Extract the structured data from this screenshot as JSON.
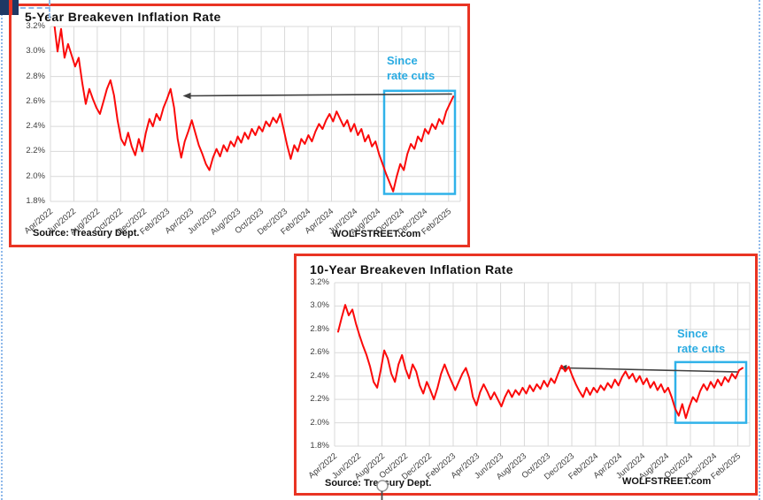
{
  "chart_data": [
    {
      "type": "line",
      "title": "5-Year Breakeven Inflation Rate",
      "source_label": "Source: Treasury Dept.",
      "brand_label": "WOLFSTREET.com",
      "annotation": {
        "line1": "Since",
        "line2": "rate cuts",
        "color": "#29abe2"
      },
      "line_color": "#fb0a0a",
      "border_color": "#e93423",
      "grid_color": "#d9d9d9",
      "axis_text_color": "#404040",
      "arrow_color": "#404040",
      "ylim": [
        1.8,
        3.2
      ],
      "x_total": 35,
      "x_start": 0.3,
      "x_end": 34.4,
      "y_ticks": [
        {
          "value": 3.2,
          "label": "3.2%"
        },
        {
          "value": 3.0,
          "label": "3.0%"
        },
        {
          "value": 2.8,
          "label": "2.8%"
        },
        {
          "value": 2.6,
          "label": "2.6%"
        },
        {
          "value": 2.4,
          "label": "2.4%"
        },
        {
          "value": 2.2,
          "label": "2.2%"
        },
        {
          "value": 2.0,
          "label": "2.0%"
        },
        {
          "value": 1.8,
          "label": "1.8%"
        }
      ],
      "x_tick_labels": [
        "Apr/2022",
        "Jun/2022",
        "Aug/2022",
        "Oct/2022",
        "Dec/2022",
        "Feb/2023",
        "Apr/2023",
        "Jun/2023",
        "Aug/2023",
        "Oct/2023",
        "Dec/2023",
        "Feb/2024",
        "Apr/2024",
        "Jun/2024",
        "Aug/2024",
        "Oct/2024",
        "Dec/2024",
        "Feb/2025"
      ],
      "highlight_box": {
        "x": [
          28.5,
          34.55
        ],
        "y": [
          1.86,
          2.685
        ],
        "color": "#30b2e9"
      },
      "arrow": {
        "from": [
          34.3,
          2.66
        ],
        "to": [
          11.3,
          2.645
        ]
      },
      "values": [
        3.24,
        3.0,
        3.18,
        2.95,
        3.06,
        2.97,
        2.88,
        2.95,
        2.75,
        2.58,
        2.7,
        2.62,
        2.55,
        2.5,
        2.6,
        2.7,
        2.77,
        2.65,
        2.45,
        2.3,
        2.25,
        2.35,
        2.24,
        2.17,
        2.3,
        2.2,
        2.35,
        2.46,
        2.4,
        2.5,
        2.45,
        2.55,
        2.62,
        2.7,
        2.55,
        2.3,
        2.15,
        2.28,
        2.36,
        2.45,
        2.35,
        2.25,
        2.18,
        2.1,
        2.05,
        2.15,
        2.22,
        2.16,
        2.25,
        2.2,
        2.28,
        2.24,
        2.32,
        2.27,
        2.35,
        2.3,
        2.38,
        2.33,
        2.4,
        2.36,
        2.44,
        2.4,
        2.47,
        2.43,
        2.5,
        2.38,
        2.25,
        2.14,
        2.25,
        2.2,
        2.3,
        2.26,
        2.33,
        2.28,
        2.36,
        2.42,
        2.38,
        2.45,
        2.5,
        2.44,
        2.52,
        2.46,
        2.4,
        2.45,
        2.36,
        2.42,
        2.33,
        2.38,
        2.28,
        2.33,
        2.24,
        2.28,
        2.18,
        2.1,
        2.02,
        1.95,
        1.88,
        2.0,
        2.1,
        2.05,
        2.18,
        2.26,
        2.22,
        2.32,
        2.28,
        2.38,
        2.34,
        2.42,
        2.38,
        2.46,
        2.42,
        2.52,
        2.58,
        2.64
      ]
    },
    {
      "type": "line",
      "title": "10-Year Breakeven Inflation Rate",
      "source_label": "Source: Treasury Dept.",
      "brand_label": "WOLFSTREET.com",
      "annotation": {
        "line1": "Since",
        "line2": "rate cuts",
        "color": "#29abe2"
      },
      "line_color": "#fb0a0a",
      "border_color": "#e93423",
      "grid_color": "#d9d9d9",
      "axis_text_color": "#404040",
      "arrow_color": "#404040",
      "ylim": [
        1.8,
        3.2
      ],
      "x_total": 35,
      "x_start": 0.3,
      "x_end": 34.4,
      "y_ticks": [
        {
          "value": 3.2,
          "label": "3.2%"
        },
        {
          "value": 3.0,
          "label": "3.0%"
        },
        {
          "value": 2.8,
          "label": "2.8%"
        },
        {
          "value": 2.6,
          "label": "2.6%"
        },
        {
          "value": 2.4,
          "label": "2.4%"
        },
        {
          "value": 2.2,
          "label": "2.2%"
        },
        {
          "value": 2.0,
          "label": "2.0%"
        },
        {
          "value": 1.8,
          "label": "1.8%"
        }
      ],
      "x_tick_labels": [
        "Apr/2022",
        "Jun/2022",
        "Aug/2022",
        "Oct/2022",
        "Dec/2022",
        "Feb/2023",
        "Apr/2023",
        "Jun/2023",
        "Aug/2023",
        "Oct/2023",
        "Dec/2023",
        "Feb/2024",
        "Apr/2024",
        "Jun/2024",
        "Aug/2024",
        "Oct/2024",
        "Dec/2024",
        "Feb/2025"
      ],
      "highlight_box": {
        "x": [
          28.73,
          34.7
        ],
        "y": [
          2.0,
          2.52
        ],
        "color": "#30b2e9"
      },
      "arrow": {
        "from": [
          34.1,
          2.435
        ],
        "to": [
          18.9,
          2.47
        ]
      },
      "values": [
        2.78,
        2.9,
        3.01,
        2.92,
        2.97,
        2.85,
        2.75,
        2.66,
        2.58,
        2.48,
        2.35,
        2.3,
        2.45,
        2.62,
        2.55,
        2.42,
        2.35,
        2.5,
        2.58,
        2.46,
        2.38,
        2.5,
        2.44,
        2.32,
        2.25,
        2.35,
        2.28,
        2.2,
        2.3,
        2.42,
        2.5,
        2.42,
        2.35,
        2.28,
        2.35,
        2.42,
        2.47,
        2.38,
        2.22,
        2.15,
        2.26,
        2.33,
        2.27,
        2.2,
        2.26,
        2.2,
        2.14,
        2.22,
        2.28,
        2.22,
        2.28,
        2.24,
        2.3,
        2.25,
        2.32,
        2.27,
        2.33,
        2.29,
        2.36,
        2.31,
        2.38,
        2.34,
        2.42,
        2.49,
        2.44,
        2.48,
        2.4,
        2.33,
        2.27,
        2.22,
        2.3,
        2.24,
        2.3,
        2.26,
        2.32,
        2.28,
        2.34,
        2.3,
        2.37,
        2.32,
        2.39,
        2.44,
        2.38,
        2.42,
        2.35,
        2.4,
        2.33,
        2.38,
        2.3,
        2.35,
        2.28,
        2.33,
        2.26,
        2.3,
        2.22,
        2.12,
        2.06,
        2.16,
        2.04,
        2.14,
        2.22,
        2.18,
        2.27,
        2.33,
        2.28,
        2.35,
        2.3,
        2.37,
        2.32,
        2.39,
        2.35,
        2.42,
        2.38,
        2.45,
        2.47
      ]
    }
  ]
}
